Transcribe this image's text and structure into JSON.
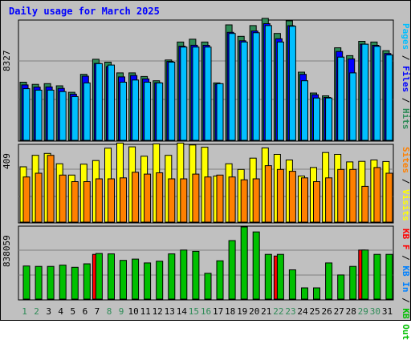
{
  "title": "Daily usage for March 2025",
  "chart_data": [
    {
      "panel": "hits",
      "type": "bar",
      "ymax_label": "8327",
      "right_label": [
        {
          "text": "Pages",
          "color": "#00bfff"
        },
        {
          "text": " / ",
          "color": "#000000"
        },
        {
          "text": "Files",
          "color": "#0000ff"
        },
        {
          "text": " / ",
          "color": "#000000"
        },
        {
          "text": "Hits",
          "color": "#2e8b57"
        }
      ],
      "series": [
        {
          "name": "Hits",
          "color": "#2e8b57",
          "values": [
            4050,
            3900,
            3950,
            3800,
            3350,
            4600,
            5650,
            5450,
            4700,
            4700,
            4450,
            4150,
            5600,
            6850,
            7050,
            6850,
            4000,
            8050,
            7250,
            8000,
            8500,
            7450,
            8327,
            4750,
            3300,
            3100,
            6450,
            5900,
            6900,
            6850,
            6250
          ]
        },
        {
          "name": "Files",
          "color": "#0000ff",
          "values": [
            3860,
            3710,
            3720,
            3620,
            3220,
            4470,
            5360,
            5140,
            4420,
            4520,
            4280,
            4010,
            5500,
            6560,
            6630,
            6620,
            3910,
            7530,
            6940,
            7620,
            8130,
            7080,
            7990,
            4600,
            3180,
            2990,
            6190,
            5680,
            6700,
            6620,
            6050
          ]
        },
        {
          "name": "Pages",
          "color": "#00bfff",
          "values": [
            3600,
            3500,
            3500,
            3400,
            3050,
            4000,
            5350,
            5250,
            4050,
            4200,
            4050,
            4000,
            5450,
            6500,
            6500,
            6500,
            3950,
            7450,
            6850,
            7500,
            8000,
            6850,
            7950,
            4150,
            2950,
            2950,
            5800,
            4700,
            6700,
            6550,
            5950
          ]
        }
      ]
    },
    {
      "panel": "visits",
      "type": "bar",
      "ymax_label": "409",
      "right_label": [
        {
          "text": "Sites",
          "color": "#ff8000"
        },
        {
          "text": " / ",
          "color": "#000000"
        },
        {
          "text": "Visits",
          "color": "#ffff00"
        }
      ],
      "series": [
        {
          "name": "Visits",
          "color": "#ffff00",
          "values": [
            294,
            355,
            365,
            310,
            250,
            308,
            327,
            393,
            420,
            400,
            350,
            416,
            355,
            420,
            410,
            398,
            245,
            310,
            280,
            340,
            394,
            360,
            330,
            245,
            290,
            370,
            360,
            320,
            323,
            330,
            322
          ]
        },
        {
          "name": "Sites",
          "color": "#ff8000",
          "values": [
            240,
            260,
            355,
            250,
            215,
            215,
            230,
            230,
            235,
            265,
            255,
            262,
            230,
            230,
            255,
            240,
            250,
            240,
            225,
            230,
            300,
            280,
            270,
            235,
            215,
            235,
            280,
            280,
            190,
            290,
            260
          ]
        }
      ]
    },
    {
      "panel": "kbytes",
      "type": "bar",
      "ymax_label": "838059",
      "right_label": [
        {
          "text": "KB F",
          "color": "#ff0000"
        },
        {
          "text": " / ",
          "color": "#000000"
        },
        {
          "text": "KB In",
          "color": "#0080ff"
        },
        {
          "text": " / ",
          "color": "#000000"
        },
        {
          "text": "KB Out",
          "color": "#00c000"
        }
      ],
      "series": [
        {
          "name": "KB F",
          "color": "#ff0000",
          "values": [
            0,
            0,
            0,
            0,
            0,
            0,
            520000,
            0,
            0,
            0,
            0,
            0,
            0,
            0,
            0,
            0,
            0,
            0,
            0,
            0,
            0,
            500000,
            0,
            0,
            0,
            0,
            0,
            0,
            570000,
            0,
            0
          ]
        },
        {
          "name": "KB In",
          "color": "#0080ff",
          "values": [
            0,
            0,
            0,
            0,
            0,
            0,
            0,
            0,
            0,
            0,
            0,
            0,
            0,
            0,
            0,
            0,
            0,
            0,
            0,
            0,
            0,
            0,
            0,
            0,
            0,
            0,
            0,
            0,
            0,
            0,
            0
          ]
        },
        {
          "name": "KB Out",
          "color": "#00c000",
          "values": [
            385000,
            380000,
            380000,
            395000,
            370000,
            410000,
            530000,
            525000,
            450000,
            465000,
            420000,
            440000,
            525000,
            570000,
            555000,
            300000,
            445000,
            680000,
            838059,
            780000,
            520000,
            520000,
            340000,
            130000,
            130000,
            420000,
            280000,
            380000,
            570000,
            520000,
            520000
          ]
        }
      ]
    }
  ],
  "days": [
    "1",
    "2",
    "3",
    "4",
    "5",
    "6",
    "7",
    "8",
    "9",
    "10",
    "11",
    "12",
    "13",
    "14",
    "15",
    "16",
    "17",
    "18",
    "19",
    "20",
    "21",
    "22",
    "23",
    "24",
    "25",
    "26",
    "27",
    "28",
    "29",
    "30",
    "31"
  ],
  "weekend_days": [
    "1",
    "2",
    "8",
    "9",
    "15",
    "16",
    "22",
    "23",
    "29",
    "30"
  ],
  "colors": {
    "background": "#c0c0c0",
    "plot": "#c0c0c0",
    "title": "#0000ff",
    "weekday_label": "#000000",
    "weekend_label": "#2e8b57"
  }
}
